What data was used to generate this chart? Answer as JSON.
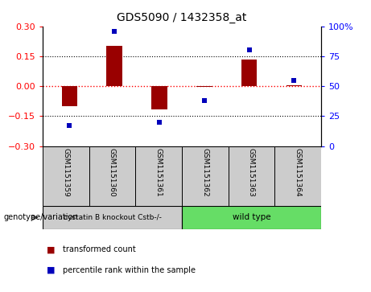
{
  "title": "GDS5090 / 1432358_at",
  "samples": [
    "GSM1151359",
    "GSM1151360",
    "GSM1151361",
    "GSM1151362",
    "GSM1151363",
    "GSM1151364"
  ],
  "bar_values": [
    -0.1,
    0.2,
    -0.115,
    -0.005,
    0.135,
    0.005
  ],
  "percentile_values": [
    17,
    96,
    20,
    38,
    80,
    55
  ],
  "group_colors": [
    "#cccccc",
    "#66dd66"
  ],
  "bar_color": "#990000",
  "dot_color": "#0000bb",
  "ylim_left": [
    -0.3,
    0.3
  ],
  "ylim_right": [
    0,
    100
  ],
  "yticks_left": [
    -0.3,
    -0.15,
    0.0,
    0.15,
    0.3
  ],
  "yticks_right": [
    0,
    25,
    50,
    75,
    100
  ],
  "hline_dotted": [
    -0.15,
    0.15
  ],
  "bar_width": 0.35,
  "bg_color": "#ffffff",
  "plot_bg_color": "#ffffff",
  "label_transformed": "transformed count",
  "label_percentile": "percentile rank within the sample",
  "genotype_label": "genotype/variation",
  "group1_label": "cystatin B knockout Cstb-/-",
  "group2_label": "wild type",
  "sample_box_color": "#cccccc",
  "group1_color": "#cccccc",
  "group2_color": "#66dd66"
}
